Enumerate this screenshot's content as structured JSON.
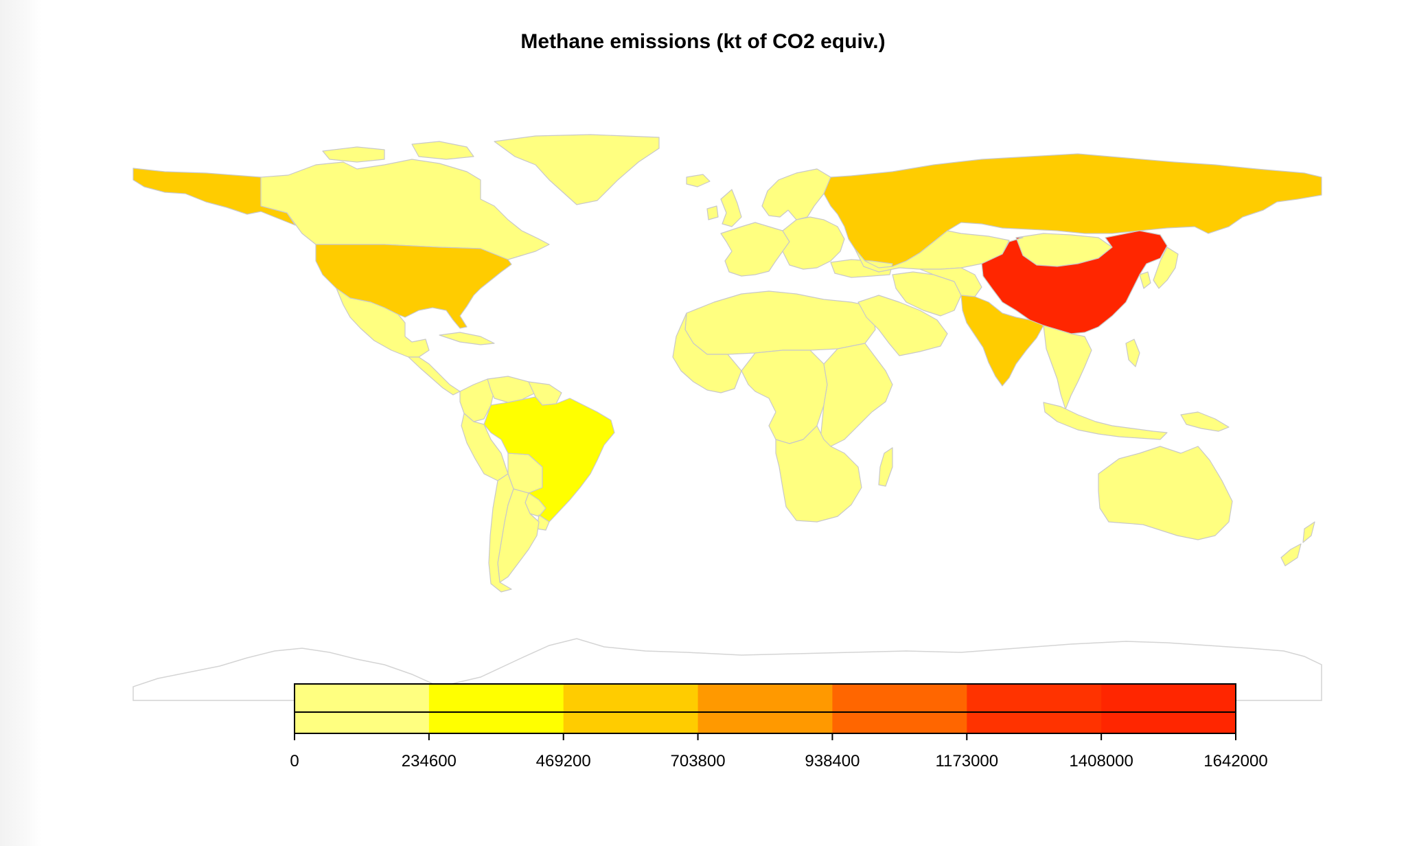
{
  "title": "Methane emissions (kt of CO2 equiv.)",
  "colors": {
    "background": "#ffffff",
    "border": "#c8c8c8",
    "no_data": "#ffffff",
    "antarctica_outline": "#d4d4d4"
  },
  "legend": {
    "bins": [
      {
        "from": 0,
        "to": 234600,
        "color": "#ffff80"
      },
      {
        "from": 234600,
        "to": 469200,
        "color": "#ffff00"
      },
      {
        "from": 469200,
        "to": 703800,
        "color": "#ffcc00"
      },
      {
        "from": 703800,
        "to": 938400,
        "color": "#ff9900"
      },
      {
        "from": 938400,
        "to": 1173000,
        "color": "#ff6600"
      },
      {
        "from": 1173000,
        "to": 1408000,
        "color": "#ff3300"
      },
      {
        "from": 1408000,
        "to": 1642000,
        "color": "#ff2600"
      }
    ],
    "tick_labels": [
      "0",
      "234600",
      "469200",
      "703800",
      "938400",
      "1173000",
      "1408000",
      "1642000"
    ]
  },
  "regions": [
    {
      "name": "Alaska (United States)",
      "class": 3
    },
    {
      "name": "Canada",
      "class": 1
    },
    {
      "name": "Greenland",
      "class": 1
    },
    {
      "name": "United States",
      "class": 3
    },
    {
      "name": "Mexico",
      "class": 1
    },
    {
      "name": "Central America",
      "class": 1
    },
    {
      "name": "Cuba",
      "class": 1
    },
    {
      "name": "Colombia",
      "class": 1
    },
    {
      "name": "Venezuela",
      "class": 1
    },
    {
      "name": "Guianas",
      "class": 1
    },
    {
      "name": "Peru",
      "class": 1
    },
    {
      "name": "Bolivia",
      "class": 1
    },
    {
      "name": "Brazil",
      "class": 2
    },
    {
      "name": "Paraguay",
      "class": 1
    },
    {
      "name": "Uruguay",
      "class": 1
    },
    {
      "name": "Argentina",
      "class": 1
    },
    {
      "name": "Chile",
      "class": 1
    },
    {
      "name": "Iceland",
      "class": 1
    },
    {
      "name": "United Kingdom",
      "class": 1
    },
    {
      "name": "Ireland",
      "class": 1
    },
    {
      "name": "Scandinavia",
      "class": 1
    },
    {
      "name": "Western Europe",
      "class": 1
    },
    {
      "name": "Eastern Europe",
      "class": 1
    },
    {
      "name": "Russia",
      "class": 3
    },
    {
      "name": "North Africa",
      "class": 1
    },
    {
      "name": "West Africa",
      "class": 1
    },
    {
      "name": "Central Africa",
      "class": 1
    },
    {
      "name": "East Africa",
      "class": 1
    },
    {
      "name": "Southern Africa",
      "class": 1
    },
    {
      "name": "Madagascar",
      "class": 1
    },
    {
      "name": "Turkey",
      "class": 1
    },
    {
      "name": "Arabian Peninsula",
      "class": 1
    },
    {
      "name": "Iran",
      "class": 1
    },
    {
      "name": "Kazakhstan",
      "class": 1
    },
    {
      "name": "Central Asia",
      "class": 1
    },
    {
      "name": "Mongolia",
      "class": 1
    },
    {
      "name": "China",
      "class": 7
    },
    {
      "name": "India",
      "class": 3
    },
    {
      "name": "Southeast Asia",
      "class": 1
    },
    {
      "name": "Japan",
      "class": 1
    },
    {
      "name": "Korea",
      "class": 1
    },
    {
      "name": "Indonesia",
      "class": 1
    },
    {
      "name": "Philippines",
      "class": 1
    },
    {
      "name": "Papua New Guinea",
      "class": 1
    },
    {
      "name": "Australia",
      "class": 1
    },
    {
      "name": "New Zealand",
      "class": 1
    }
  ]
}
